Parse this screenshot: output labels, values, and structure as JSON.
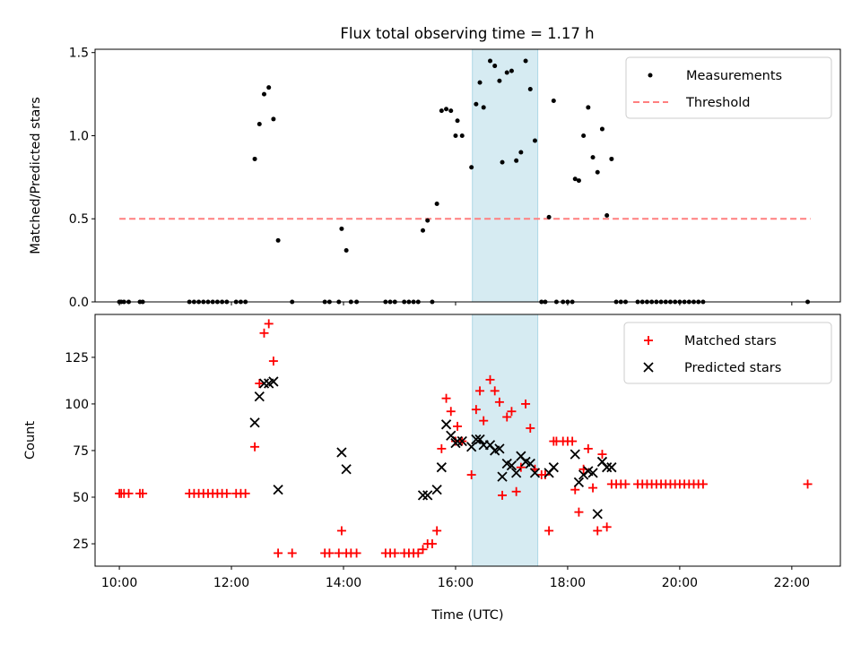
{
  "title": "Flux total observing time = 1.17 h",
  "colors": {
    "measurement": "#000000",
    "threshold": "#ff7f7f",
    "matched": "#ff0000",
    "predicted": "#000000",
    "span": "#add8e6"
  },
  "chart_data": [
    {
      "type": "scatter",
      "ylabel": "Matched/Predicted stars",
      "xlim": [
        "09:34",
        "22:52"
      ],
      "ylim": [
        0,
        1.52
      ],
      "yticks": [
        0.0,
        0.5,
        1.0,
        1.5
      ],
      "ytick_labels": [
        "0.0",
        "0.5",
        "1.0",
        "1.5"
      ],
      "legend": {
        "placement": "upper-right",
        "entries": [
          "Measurements",
          "Threshold"
        ]
      },
      "highlight_span": [
        "16:18",
        "17:28"
      ],
      "threshold": {
        "value": 0.5,
        "x_range": [
          "10:00",
          "22:20"
        ]
      },
      "series": [
        {
          "name": "Measurements",
          "marker": "dot",
          "points": [
            [
              "10:00",
              0
            ],
            [
              "10:02",
              0
            ],
            [
              "10:05",
              0
            ],
            [
              "10:10",
              0
            ],
            [
              "10:22",
              0
            ],
            [
              "10:25",
              0
            ],
            [
              "11:15",
              0
            ],
            [
              "11:20",
              0
            ],
            [
              "11:25",
              0
            ],
            [
              "11:30",
              0
            ],
            [
              "11:35",
              0
            ],
            [
              "11:40",
              0
            ],
            [
              "11:45",
              0
            ],
            [
              "11:50",
              0
            ],
            [
              "11:55",
              0
            ],
            [
              "12:05",
              0
            ],
            [
              "12:10",
              0
            ],
            [
              "12:15",
              0
            ],
            [
              "12:25",
              0.86
            ],
            [
              "12:30",
              1.07
            ],
            [
              "12:35",
              1.25
            ],
            [
              "12:40",
              1.29
            ],
            [
              "12:45",
              1.1
            ],
            [
              "12:50",
              0.37
            ],
            [
              "13:05",
              0
            ],
            [
              "13:40",
              0
            ],
            [
              "13:45",
              0
            ],
            [
              "13:55",
              0
            ],
            [
              "13:58",
              0.44
            ],
            [
              "14:03",
              0.31
            ],
            [
              "14:08",
              0
            ],
            [
              "14:14",
              0
            ],
            [
              "14:45",
              0
            ],
            [
              "14:50",
              0
            ],
            [
              "14:55",
              0
            ],
            [
              "15:05",
              0
            ],
            [
              "15:10",
              0
            ],
            [
              "15:15",
              0
            ],
            [
              "15:20",
              0
            ],
            [
              "15:25",
              0.43
            ],
            [
              "15:30",
              0.49
            ],
            [
              "15:35",
              0
            ],
            [
              "15:40",
              0.59
            ],
            [
              "15:45",
              1.15
            ],
            [
              "15:50",
              1.16
            ],
            [
              "15:55",
              1.15
            ],
            [
              "16:00",
              1.0
            ],
            [
              "16:02",
              1.09
            ],
            [
              "16:07",
              1.0
            ],
            [
              "16:17",
              0.81
            ],
            [
              "16:22",
              1.19
            ],
            [
              "16:26",
              1.32
            ],
            [
              "16:30",
              1.17
            ],
            [
              "16:37",
              1.45
            ],
            [
              "16:42",
              1.42
            ],
            [
              "16:47",
              1.33
            ],
            [
              "16:50",
              0.84
            ],
            [
              "16:55",
              1.38
            ],
            [
              "17:00",
              1.39
            ],
            [
              "17:05",
              0.85
            ],
            [
              "17:10",
              0.9
            ],
            [
              "17:15",
              1.45
            ],
            [
              "17:20",
              1.28
            ],
            [
              "17:25",
              0.97
            ],
            [
              "17:32",
              0
            ],
            [
              "17:36",
              0
            ],
            [
              "17:40",
              0.51
            ],
            [
              "17:45",
              1.21
            ],
            [
              "17:48",
              0
            ],
            [
              "17:55",
              0
            ],
            [
              "18:00",
              0
            ],
            [
              "18:05",
              0
            ],
            [
              "18:08",
              0.74
            ],
            [
              "18:12",
              0.73
            ],
            [
              "18:17",
              1.0
            ],
            [
              "18:22",
              1.17
            ],
            [
              "18:27",
              0.87
            ],
            [
              "18:32",
              0.78
            ],
            [
              "18:37",
              1.04
            ],
            [
              "18:42",
              0.52
            ],
            [
              "18:47",
              0.86
            ],
            [
              "18:52",
              0
            ],
            [
              "18:57",
              0
            ],
            [
              "19:02",
              0
            ],
            [
              "19:15",
              0
            ],
            [
              "19:20",
              0
            ],
            [
              "19:25",
              0
            ],
            [
              "19:30",
              0
            ],
            [
              "19:35",
              0
            ],
            [
              "19:40",
              0
            ],
            [
              "19:45",
              0
            ],
            [
              "19:50",
              0
            ],
            [
              "19:55",
              0
            ],
            [
              "20:00",
              0
            ],
            [
              "20:05",
              0
            ],
            [
              "20:10",
              0
            ],
            [
              "20:15",
              0
            ],
            [
              "20:20",
              0
            ],
            [
              "20:25",
              0
            ],
            [
              "22:17",
              0
            ]
          ]
        }
      ]
    },
    {
      "type": "scatter",
      "xlabel": "Time (UTC)",
      "ylabel": "Count",
      "xlim": [
        "09:34",
        "22:52"
      ],
      "ylim": [
        13,
        148
      ],
      "xticks": [
        "10:00",
        "12:00",
        "14:00",
        "16:00",
        "18:00",
        "20:00",
        "22:00"
      ],
      "yticks": [
        25,
        50,
        75,
        100,
        125
      ],
      "ytick_labels": [
        "25",
        "50",
        "75",
        "100",
        "125"
      ],
      "legend": {
        "placement": "upper-right",
        "entries": [
          "Matched stars",
          "Predicted stars"
        ]
      },
      "highlight_span": [
        "16:18",
        "17:28"
      ],
      "series": [
        {
          "name": "Matched stars",
          "marker": "plus",
          "points": [
            [
              "10:00",
              52
            ],
            [
              "10:02",
              52
            ],
            [
              "10:05",
              52
            ],
            [
              "10:10",
              52
            ],
            [
              "10:22",
              52
            ],
            [
              "10:25",
              52
            ],
            [
              "11:15",
              52
            ],
            [
              "11:20",
              52
            ],
            [
              "11:25",
              52
            ],
            [
              "11:30",
              52
            ],
            [
              "11:35",
              52
            ],
            [
              "11:40",
              52
            ],
            [
              "11:45",
              52
            ],
            [
              "11:50",
              52
            ],
            [
              "11:55",
              52
            ],
            [
              "12:05",
              52
            ],
            [
              "12:10",
              52
            ],
            [
              "12:15",
              52
            ],
            [
              "12:25",
              77
            ],
            [
              "12:30",
              111
            ],
            [
              "12:35",
              138
            ],
            [
              "12:40",
              143
            ],
            [
              "12:45",
              123
            ],
            [
              "12:50",
              20
            ],
            [
              "13:05",
              20
            ],
            [
              "13:40",
              20
            ],
            [
              "13:45",
              20
            ],
            [
              "13:55",
              20
            ],
            [
              "13:58",
              32
            ],
            [
              "14:03",
              20
            ],
            [
              "14:08",
              20
            ],
            [
              "14:14",
              20
            ],
            [
              "14:45",
              20
            ],
            [
              "14:50",
              20
            ],
            [
              "14:55",
              20
            ],
            [
              "15:05",
              20
            ],
            [
              "15:10",
              20
            ],
            [
              "15:15",
              20
            ],
            [
              "15:20",
              20
            ],
            [
              "15:25",
              22
            ],
            [
              "15:30",
              25
            ],
            [
              "15:35",
              25
            ],
            [
              "15:40",
              32
            ],
            [
              "15:45",
              76
            ],
            [
              "15:50",
              103
            ],
            [
              "15:55",
              96
            ],
            [
              "16:00",
              80
            ],
            [
              "16:02",
              88
            ],
            [
              "16:07",
              80
            ],
            [
              "16:17",
              62
            ],
            [
              "16:22",
              97
            ],
            [
              "16:26",
              107
            ],
            [
              "16:30",
              91
            ],
            [
              "16:37",
              113
            ],
            [
              "16:42",
              107
            ],
            [
              "16:47",
              101
            ],
            [
              "16:50",
              51
            ],
            [
              "16:55",
              93
            ],
            [
              "17:00",
              96
            ],
            [
              "17:05",
              53
            ],
            [
              "17:10",
              66
            ],
            [
              "17:15",
              100
            ],
            [
              "17:20",
              87
            ],
            [
              "17:25",
              65
            ],
            [
              "17:32",
              62
            ],
            [
              "17:36",
              62
            ],
            [
              "17:40",
              32
            ],
            [
              "17:45",
              80
            ],
            [
              "17:48",
              80
            ],
            [
              "17:55",
              80
            ],
            [
              "18:00",
              80
            ],
            [
              "18:05",
              80
            ],
            [
              "18:08",
              54
            ],
            [
              "18:12",
              42
            ],
            [
              "18:17",
              65
            ],
            [
              "18:22",
              76
            ],
            [
              "18:27",
              55
            ],
            [
              "18:32",
              32
            ],
            [
              "18:37",
              73
            ],
            [
              "18:42",
              34
            ],
            [
              "18:47",
              57
            ],
            [
              "18:52",
              57
            ],
            [
              "18:57",
              57
            ],
            [
              "19:02",
              57
            ],
            [
              "19:15",
              57
            ],
            [
              "19:20",
              57
            ],
            [
              "19:25",
              57
            ],
            [
              "19:30",
              57
            ],
            [
              "19:35",
              57
            ],
            [
              "19:40",
              57
            ],
            [
              "19:45",
              57
            ],
            [
              "19:50",
              57
            ],
            [
              "19:55",
              57
            ],
            [
              "20:00",
              57
            ],
            [
              "20:05",
              57
            ],
            [
              "20:10",
              57
            ],
            [
              "20:15",
              57
            ],
            [
              "20:20",
              57
            ],
            [
              "20:25",
              57
            ],
            [
              "22:17",
              57
            ]
          ]
        },
        {
          "name": "Predicted stars",
          "marker": "x",
          "points": [
            [
              "12:25",
              90
            ],
            [
              "12:30",
              104
            ],
            [
              "12:35",
              111
            ],
            [
              "12:40",
              111
            ],
            [
              "12:45",
              112
            ],
            [
              "12:50",
              54
            ],
            [
              "13:58",
              74
            ],
            [
              "14:03",
              65
            ],
            [
              "15:25",
              51
            ],
            [
              "15:30",
              51
            ],
            [
              "15:40",
              54
            ],
            [
              "15:45",
              66
            ],
            [
              "15:50",
              89
            ],
            [
              "15:55",
              83
            ],
            [
              "16:00",
              79
            ],
            [
              "16:02",
              80
            ],
            [
              "16:07",
              80
            ],
            [
              "16:17",
              77
            ],
            [
              "16:22",
              81
            ],
            [
              "16:26",
              81
            ],
            [
              "16:30",
              78
            ],
            [
              "16:37",
              78
            ],
            [
              "16:42",
              75
            ],
            [
              "16:47",
              76
            ],
            [
              "16:50",
              61
            ],
            [
              "16:55",
              68
            ],
            [
              "17:00",
              67
            ],
            [
              "17:05",
              63
            ],
            [
              "17:10",
              72
            ],
            [
              "17:15",
              69
            ],
            [
              "17:20",
              68
            ],
            [
              "17:25",
              63
            ],
            [
              "17:40",
              63
            ],
            [
              "17:45",
              66
            ],
            [
              "18:08",
              73
            ],
            [
              "18:12",
              58
            ],
            [
              "18:17",
              62
            ],
            [
              "18:22",
              64
            ],
            [
              "18:27",
              63
            ],
            [
              "18:32",
              41
            ],
            [
              "18:37",
              69
            ],
            [
              "18:42",
              66
            ],
            [
              "18:47",
              66
            ]
          ]
        }
      ]
    }
  ]
}
